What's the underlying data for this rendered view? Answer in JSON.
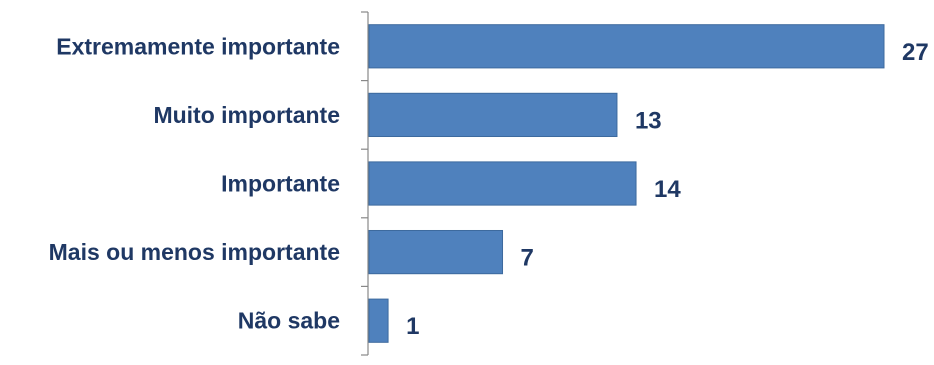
{
  "chart_data": {
    "type": "bar",
    "orientation": "horizontal",
    "categories": [
      "Extremamente importante",
      "Muito importante",
      "Importante",
      "Mais ou menos importante",
      "Não sabe"
    ],
    "values": [
      27,
      13,
      14,
      7,
      1
    ],
    "title": "",
    "xlabel": "",
    "ylabel": "",
    "xlim": [
      0,
      27
    ],
    "grid": false,
    "legend": "none",
    "data_labels": true
  },
  "colors": {
    "bar": "#4F81BD",
    "bar_edge": "#3D6A9E",
    "text": "#1F3864",
    "axis": "#888888"
  }
}
